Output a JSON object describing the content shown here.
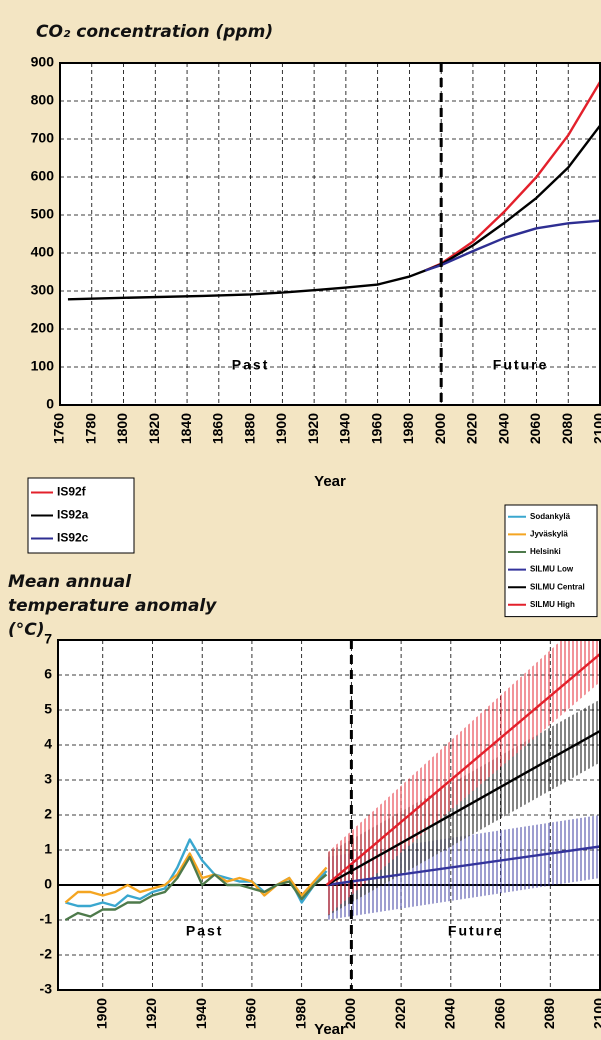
{
  "chart_data": [
    {
      "type": "line",
      "title": "CO₂ concentration (ppm)",
      "xlabel": "Year",
      "xlim": [
        1760,
        2100
      ],
      "xticks": [
        1760,
        1780,
        1800,
        1820,
        1840,
        1860,
        1880,
        1900,
        1920,
        1940,
        1960,
        1980,
        2000,
        2020,
        2040,
        2060,
        2080,
        2100
      ],
      "ylim": [
        0,
        900
      ],
      "yticks": [
        0,
        100,
        200,
        300,
        400,
        500,
        600,
        700,
        800,
        900
      ],
      "grid": true,
      "divider_x": 2000,
      "annotations": [
        "Past",
        "Future"
      ],
      "series": [
        {
          "name": "IS92f",
          "color": "#e3202b",
          "x": [
            1990,
            2000,
            2020,
            2040,
            2060,
            2080,
            2100
          ],
          "values": [
            354,
            372,
            430,
            510,
            600,
            710,
            850
          ]
        },
        {
          "name": "IS92a",
          "color": "#000000",
          "x": [
            1765,
            1800,
            1850,
            1880,
            1900,
            1920,
            1940,
            1960,
            1980,
            1990,
            2000,
            2020,
            2040,
            2060,
            2080,
            2100
          ],
          "values": [
            278,
            282,
            287,
            291,
            296,
            302,
            309,
            317,
            338,
            354,
            370,
            420,
            480,
            545,
            625,
            735
          ]
        },
        {
          "name": "IS92c",
          "color": "#2e2e92",
          "x": [
            1990,
            2000,
            2020,
            2040,
            2060,
            2080,
            2100
          ],
          "values": [
            354,
            368,
            405,
            440,
            465,
            478,
            485
          ]
        }
      ]
    },
    {
      "type": "line",
      "title": "Mean annual temperature anomaly (°C)",
      "xlabel": "Year",
      "xlim": [
        1882,
        2100
      ],
      "xticks": [
        1900,
        1920,
        1940,
        1960,
        1980,
        2000,
        2020,
        2040,
        2060,
        2080,
        2100
      ],
      "ylim": [
        -3,
        7
      ],
      "yticks": [
        -3,
        -2,
        -1,
        0,
        1,
        2,
        3,
        4,
        5,
        6,
        7
      ],
      "grid": true,
      "divider_x": 2000,
      "annotations": [
        "Past",
        "Future"
      ],
      "series": [
        {
          "name": "Sodankylä",
          "color": "#3aa7cf",
          "x": [
            1885,
            1890,
            1895,
            1900,
            1905,
            1910,
            1915,
            1920,
            1925,
            1930,
            1935,
            1940,
            1945,
            1950,
            1955,
            1960,
            1965,
            1970,
            1975,
            1980,
            1985,
            1990
          ],
          "values": [
            -0.5,
            -0.6,
            -0.6,
            -0.5,
            -0.6,
            -0.3,
            -0.4,
            -0.2,
            -0.1,
            0.5,
            1.3,
            0.7,
            0.3,
            0.2,
            0.1,
            0.1,
            -0.2,
            0.0,
            0.2,
            -0.5,
            0.0,
            0.4
          ]
        },
        {
          "name": "Jyväskylä",
          "color": "#f4a521",
          "x": [
            1885,
            1890,
            1895,
            1900,
            1905,
            1910,
            1915,
            1920,
            1925,
            1930,
            1935,
            1940,
            1945,
            1950,
            1955,
            1960,
            1965,
            1970,
            1975,
            1980,
            1985,
            1990
          ],
          "values": [
            -0.5,
            -0.2,
            -0.2,
            -0.3,
            -0.2,
            0.0,
            -0.2,
            -0.1,
            0.0,
            0.3,
            0.9,
            0.2,
            0.3,
            0.1,
            0.2,
            0.1,
            -0.3,
            0.0,
            0.2,
            -0.3,
            0.1,
            0.5
          ]
        },
        {
          "name": "Helsinki",
          "color": "#4e7a4b",
          "x": [
            1885,
            1890,
            1895,
            1900,
            1905,
            1910,
            1915,
            1920,
            1925,
            1930,
            1935,
            1940,
            1945,
            1950,
            1955,
            1960,
            1965,
            1970,
            1975,
            1980,
            1985,
            1990
          ],
          "values": [
            -1.0,
            -0.8,
            -0.9,
            -0.7,
            -0.7,
            -0.5,
            -0.5,
            -0.3,
            -0.2,
            0.2,
            0.8,
            0.0,
            0.3,
            0.0,
            0.0,
            -0.1,
            -0.2,
            0.0,
            0.1,
            -0.4,
            0.0,
            0.3
          ]
        },
        {
          "name": "SILMU Low",
          "color": "#34349c",
          "x": [
            1990,
            2100
          ],
          "values": [
            0.0,
            1.1
          ],
          "lower": [
            -1.0,
            0.2
          ],
          "upper": [
            0.8,
            2.0
          ]
        },
        {
          "name": "SILMU Central",
          "color": "#000000",
          "x": [
            1990,
            2100
          ],
          "values": [
            0.0,
            4.4
          ],
          "lower": [
            -0.9,
            3.5
          ],
          "upper": [
            0.9,
            5.3
          ]
        },
        {
          "name": "SILMU High",
          "color": "#e3202b",
          "x": [
            1990,
            2100
          ],
          "values": [
            0.0,
            6.6
          ],
          "lower": [
            -0.9,
            5.8
          ],
          "upper": [
            0.9,
            8.0
          ]
        }
      ]
    }
  ]
}
